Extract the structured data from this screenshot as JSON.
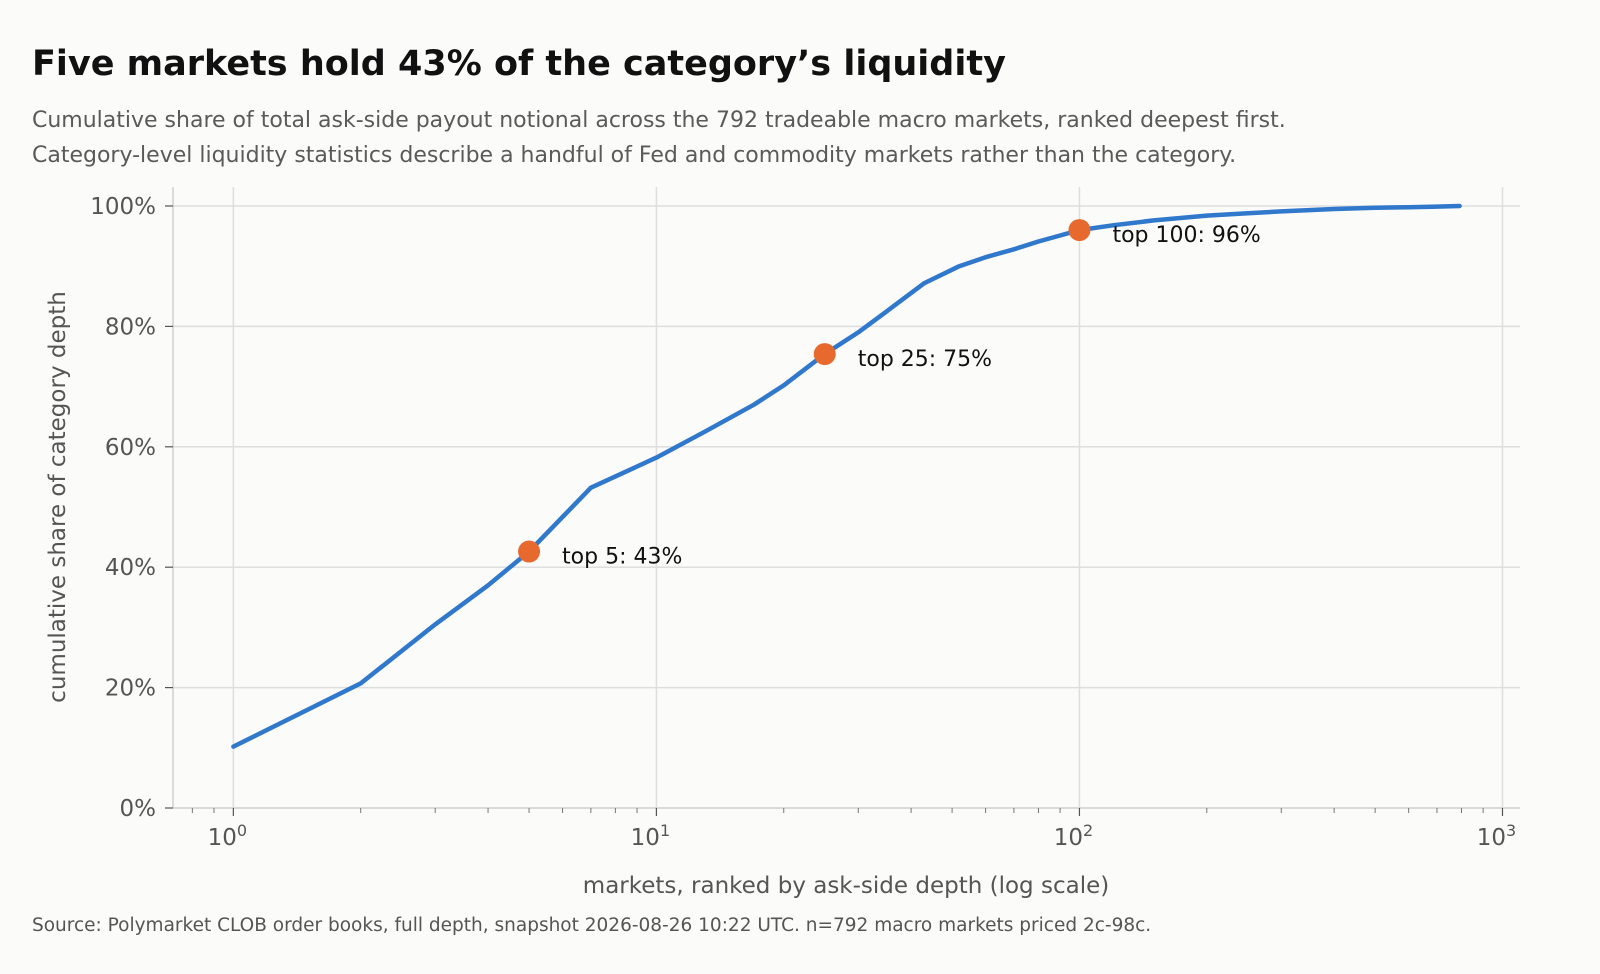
{
  "title": "Five markets hold 43% of the category’s liquidity",
  "subtitle_lines": [
    "Cumulative share of total ask-side payout notional across the 792 tradeable macro markets, ranked deepest first.",
    "Category-level liquidity statistics describe a handful of Fed and commodity markets rather than the category."
  ],
  "source": "Source: Polymarket CLOB order books, full depth, snapshot 2026-08-26 10:22 UTC. n=792 macro markets priced 2c-98c.",
  "colors": {
    "background": "#fbfbf9",
    "line": "#2f78cc",
    "marker": "#e8692e",
    "grid": "#dedede",
    "axis": "#cfcfcf"
  },
  "chart_data": {
    "type": "line",
    "title": "Five markets hold 43% of the category’s liquidity",
    "xlabel": "markets, ranked by ask-side depth (log scale)",
    "ylabel": "cumulative share of category depth",
    "x_scale": "log",
    "xlim": [
      0.72,
      1100
    ],
    "ylim": [
      0,
      1
    ],
    "grid": true,
    "y_ticks": [
      {
        "value": 0,
        "label": "0%"
      },
      {
        "value": 0.2,
        "label": "20%"
      },
      {
        "value": 0.4,
        "label": "40%"
      },
      {
        "value": 0.6,
        "label": "60%"
      },
      {
        "value": 0.8,
        "label": "80%"
      },
      {
        "value": 1.0,
        "label": "100%"
      }
    ],
    "x_ticks": [
      {
        "value": 1,
        "base": "10",
        "exp": "0"
      },
      {
        "value": 10,
        "base": "10",
        "exp": "1"
      },
      {
        "value": 100,
        "base": "10",
        "exp": "2"
      },
      {
        "value": 1000,
        "base": "10",
        "exp": "3"
      }
    ],
    "series": [
      {
        "x": [
          1,
          2,
          3,
          4,
          5,
          7,
          10,
          13,
          17,
          20,
          25,
          30,
          35,
          43,
          52,
          60,
          70,
          80,
          90,
          100,
          120,
          150,
          200,
          250,
          300,
          400,
          500,
          600,
          700,
          792
        ],
        "y": [
          0.102,
          0.207,
          0.305,
          0.37,
          0.426,
          0.532,
          0.582,
          0.625,
          0.67,
          0.702,
          0.754,
          0.79,
          0.825,
          0.872,
          0.9,
          0.915,
          0.928,
          0.941,
          0.951,
          0.96,
          0.968,
          0.976,
          0.984,
          0.988,
          0.991,
          0.995,
          0.997,
          0.998,
          0.999,
          1.0
        ]
      }
    ],
    "annotations": [
      {
        "x": 5,
        "y": 0.426,
        "label": "top 5: 43%"
      },
      {
        "x": 25,
        "y": 0.754,
        "label": "top 25: 75%"
      },
      {
        "x": 100,
        "y": 0.96,
        "label": "top 100: 96%"
      }
    ]
  }
}
